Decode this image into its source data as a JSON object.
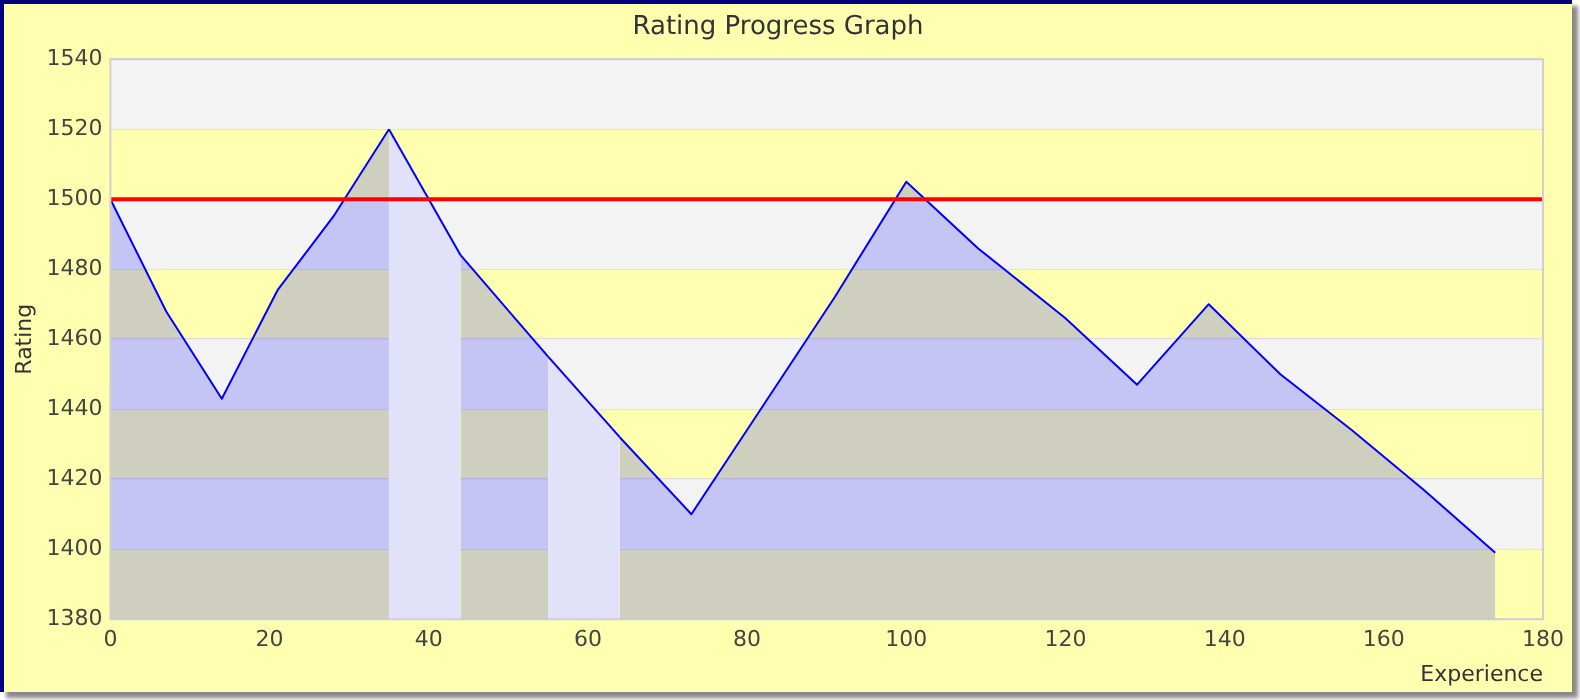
{
  "chart_data": {
    "type": "area",
    "title": "Rating Progress Graph",
    "xlabel": "Experience",
    "ylabel": "Rating",
    "x": [
      0,
      7,
      14,
      21,
      28,
      35,
      44,
      55,
      64,
      73,
      82,
      91,
      100,
      109,
      120,
      129,
      138,
      147,
      156,
      165,
      174
    ],
    "series": [
      {
        "color": "#0000ff",
        "values": [
          1500,
          1468,
          1443,
          1474,
          1495,
          1520,
          1484,
          1455,
          1432,
          1410,
          1441,
          1472,
          1505,
          1486,
          1466,
          1447,
          1470,
          1450,
          1434,
          1417,
          1399
        ]
      }
    ],
    "xlim": [
      0,
      180
    ],
    "xticks": [
      0,
      20,
      40,
      60,
      80,
      100,
      120,
      140,
      160,
      180
    ],
    "ylim": [
      1380,
      1540
    ],
    "yticks": [
      1380,
      1400,
      1420,
      1440,
      1460,
      1480,
      1500,
      1520,
      1540
    ],
    "ref_lines": [
      {
        "axis": "y",
        "value": 1500,
        "color": "#ff0000"
      }
    ],
    "bands": [
      {
        "axis": "x",
        "from": 35,
        "to": 44,
        "color": "#e1e1fa"
      },
      {
        "axis": "x",
        "from": 55,
        "to": 64,
        "color": "#e1e1fa"
      }
    ],
    "grid": "y",
    "legend": false,
    "marker": "none",
    "line_style": "solid"
  }
}
